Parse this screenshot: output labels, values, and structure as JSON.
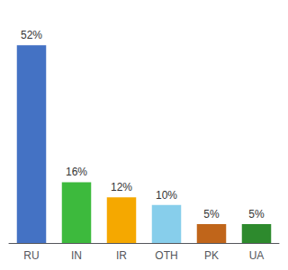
{
  "chart_data": {
    "type": "bar",
    "categories": [
      "RU",
      "IN",
      "IR",
      "OTH",
      "PK",
      "UA"
    ],
    "values": [
      52,
      16,
      12,
      10,
      5,
      5
    ],
    "value_labels": [
      "52%",
      "16%",
      "12%",
      "10%",
      "5%",
      "5%"
    ],
    "colors": [
      "#4472c4",
      "#3dba3d",
      "#f5a800",
      "#87ceeb",
      "#c0651a",
      "#2d8a2d"
    ],
    "ylim": [
      0,
      58
    ],
    "data_labels": true,
    "tick_labels": "x",
    "grid": false
  }
}
